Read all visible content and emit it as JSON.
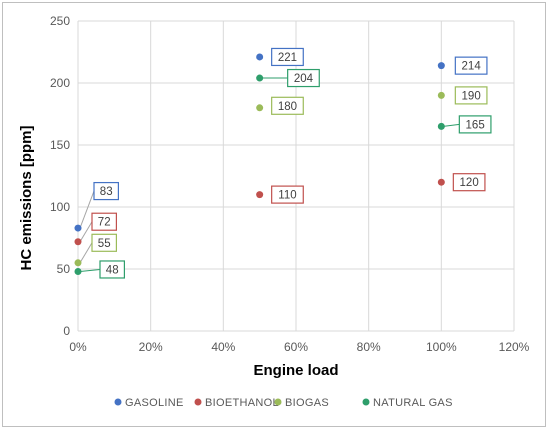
{
  "chart_data": {
    "type": "scatter",
    "title": "",
    "xlabel": "Engine load",
    "ylabel": "HC emissions [ppm]",
    "xlim": [
      0,
      120
    ],
    "ylim": [
      0,
      250
    ],
    "x_ticks": [
      0,
      20,
      40,
      60,
      80,
      100,
      120
    ],
    "x_tick_labels": [
      "0%",
      "20%",
      "40%",
      "60%",
      "80%",
      "100%",
      "120%"
    ],
    "y_ticks": [
      0,
      50,
      100,
      150,
      200,
      250
    ],
    "y_tick_labels": [
      "0",
      "50",
      "100",
      "150",
      "200",
      "250"
    ],
    "grid": "vertical and horizontal major gridlines",
    "legend_position": "bottom",
    "series": [
      {
        "name": "GASOLINE",
        "color": "#4472c4",
        "points": [
          {
            "x": 0,
            "y": 83,
            "label": "83"
          },
          {
            "x": 50,
            "y": 221,
            "label": "221"
          },
          {
            "x": 100,
            "y": 214,
            "label": "214"
          }
        ]
      },
      {
        "name": "BIOETHANOL",
        "color": "#c0504d",
        "points": [
          {
            "x": 0,
            "y": 72,
            "label": "72"
          },
          {
            "x": 50,
            "y": 110,
            "label": "110"
          },
          {
            "x": 100,
            "y": 120,
            "label": "120"
          }
        ]
      },
      {
        "name": "BIOGAS",
        "color": "#9bbb59",
        "points": [
          {
            "x": 0,
            "y": 55,
            "label": "55"
          },
          {
            "x": 50,
            "y": 180,
            "label": "180"
          },
          {
            "x": 100,
            "y": 190,
            "label": "190"
          }
        ]
      },
      {
        "name": "NATURAL GAS",
        "color": "#2e9e6b",
        "points": [
          {
            "x": 0,
            "y": 48,
            "label": "48"
          },
          {
            "x": 50,
            "y": 204,
            "label": "204"
          },
          {
            "x": 100,
            "y": 165,
            "label": "165"
          }
        ]
      }
    ]
  }
}
